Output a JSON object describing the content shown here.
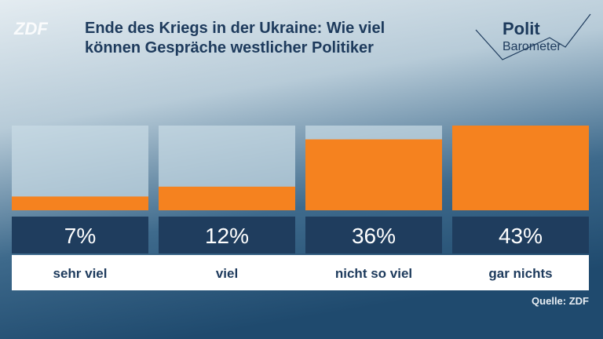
{
  "chart_data": {
    "type": "bar",
    "title": "Ende des Kriegs in der Ukraine: Wie viel können Gespräche westlicher Politiker",
    "logo": "ZDF",
    "brand": [
      "Polit",
      "Barometer"
    ],
    "source": "Quelle: ZDF",
    "categories": [
      "sehr viel",
      "viel",
      "nicht so viel",
      "gar nichts"
    ],
    "values": [
      7,
      12,
      36,
      43
    ],
    "value_labels": [
      "7%",
      "12%",
      "36%",
      "43%"
    ],
    "color": "#f5821f",
    "ylim": [
      0,
      43
    ]
  }
}
